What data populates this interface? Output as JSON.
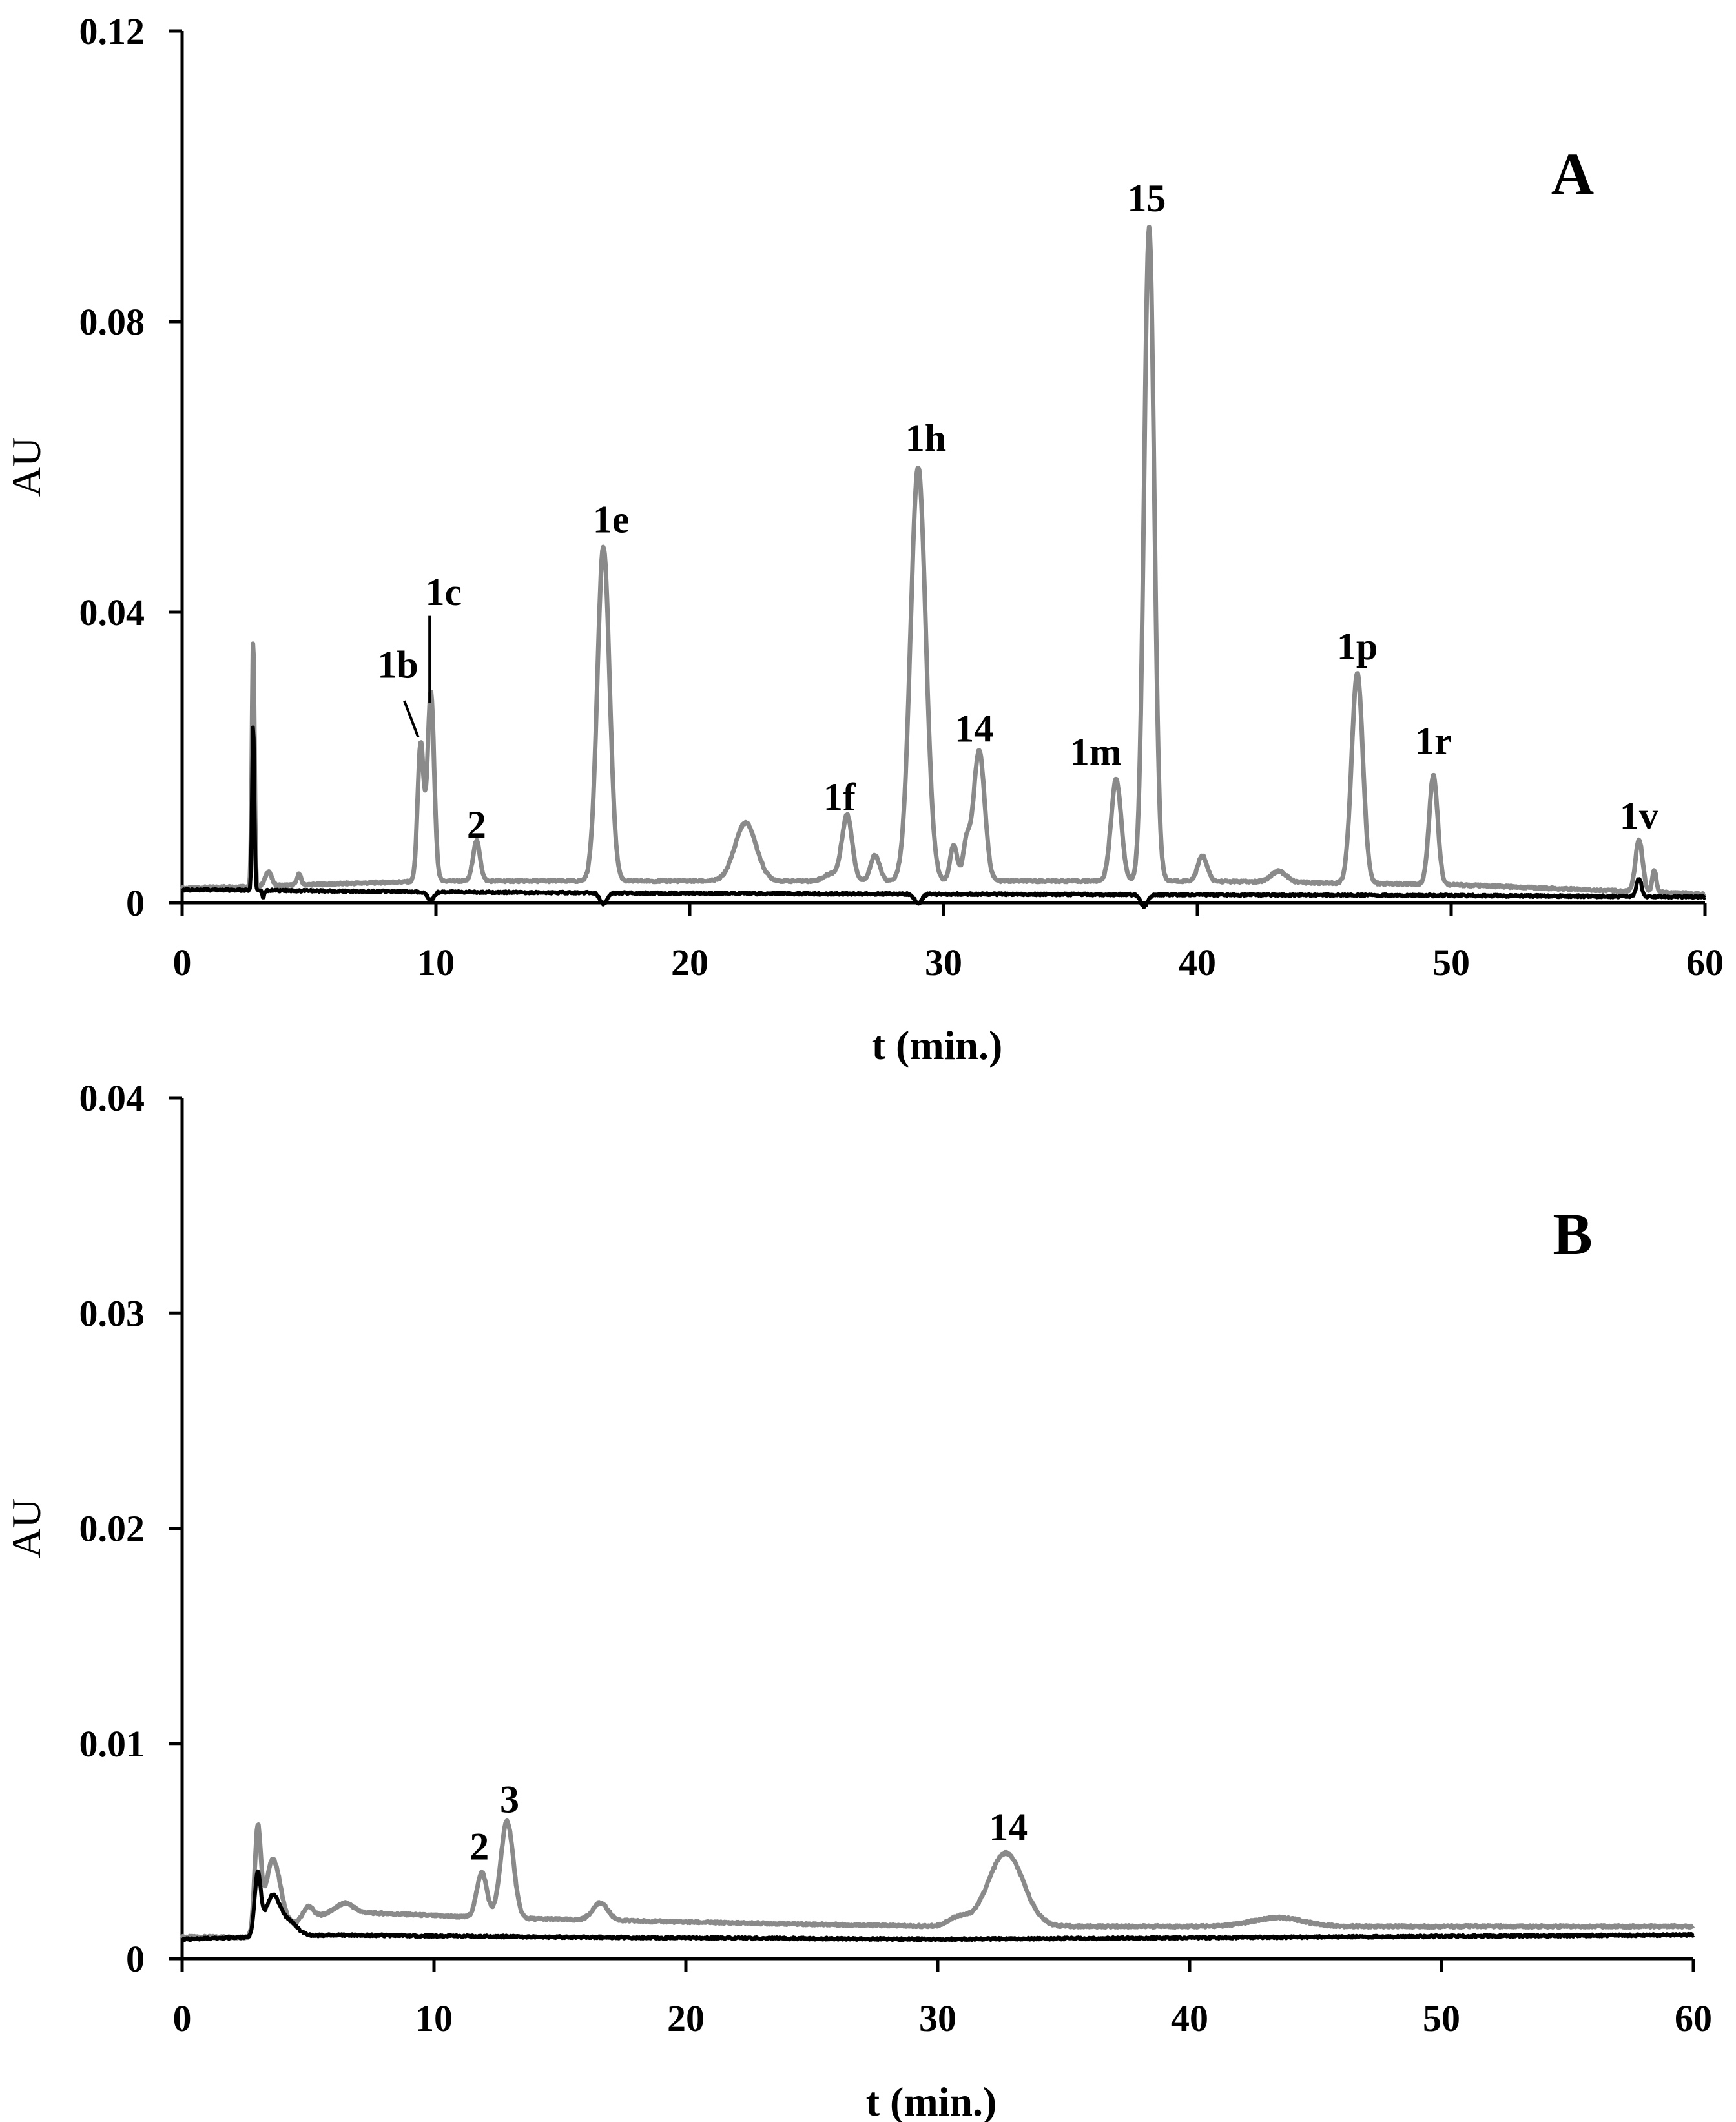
{
  "chart_data": [
    {
      "type": "line",
      "panel_label": "A",
      "xlabel": "t (min.)",
      "ylabel": "AU",
      "xlim": [
        0,
        60
      ],
      "ylim": [
        0,
        0.12
      ],
      "x_ticks": [
        0,
        10,
        20,
        30,
        40,
        50,
        60
      ],
      "y_ticks": [
        0,
        0.04,
        0.08,
        0.12
      ],
      "x_tick_labels": [
        "0",
        "10",
        "20",
        "30",
        "40",
        "50",
        "60"
      ],
      "y_tick_labels": [
        "0",
        "0.04",
        "0.08",
        "0.12"
      ],
      "grid": false,
      "colors": {
        "grey_trace": "#8a8a8a",
        "black_trace": "#000000"
      },
      "series": [
        {
          "color": "#8a8a8a",
          "baseline": [
            [
              0,
              0.002
            ],
            [
              10,
              0.003
            ],
            [
              20,
              0.003
            ],
            [
              30,
              0.003
            ],
            [
              40,
              0.003
            ],
            [
              50,
              0.0025
            ],
            [
              60,
              0.0012
            ]
          ],
          "peaks": [
            [
              2.8,
              0.034,
              0.05
            ],
            [
              3.4,
              0.002,
              0.12
            ],
            [
              4.6,
              0.0015,
              0.08
            ],
            [
              9.4,
              0.019,
              0.12
            ],
            [
              9.8,
              0.026,
              0.13
            ],
            [
              11.6,
              0.0055,
              0.14
            ],
            [
              16.6,
              0.046,
              0.24
            ],
            [
              22.2,
              0.008,
              0.42
            ],
            [
              25.6,
              0.001,
              0.3
            ],
            [
              26.2,
              0.009,
              0.2
            ],
            [
              27.3,
              0.0035,
              0.18
            ],
            [
              29.0,
              0.057,
              0.3
            ],
            [
              30.4,
              0.005,
              0.14
            ],
            [
              30.9,
              0.005,
              0.14
            ],
            [
              31.4,
              0.018,
              0.22
            ],
            [
              36.8,
              0.014,
              0.2
            ],
            [
              38.1,
              0.09,
              0.2
            ],
            [
              40.2,
              0.0035,
              0.18
            ],
            [
              43.2,
              0.0015,
              0.3
            ],
            [
              46.3,
              0.029,
              0.22
            ],
            [
              49.3,
              0.015,
              0.17
            ],
            [
              57.4,
              0.0072,
              0.14
            ],
            [
              58.0,
              0.003,
              0.08
            ]
          ],
          "points": [
            [
              0,
              0.002
            ],
            [
              2.8,
              0.036
            ],
            [
              9.4,
              0.022
            ],
            [
              9.8,
              0.029
            ],
            [
              11.6,
              0.0085
            ],
            [
              16.6,
              0.049
            ],
            [
              22.2,
              0.011
            ],
            [
              26.2,
              0.012
            ],
            [
              29.0,
              0.06
            ],
            [
              31.4,
              0.021
            ],
            [
              36.8,
              0.017
            ],
            [
              38.1,
              0.093
            ],
            [
              46.3,
              0.032
            ],
            [
              49.3,
              0.018
            ],
            [
              57.4,
              0.0085
            ],
            [
              60,
              0.0012
            ]
          ]
        },
        {
          "color": "#000000",
          "baseline": [
            [
              0,
              0.0018
            ],
            [
              10,
              0.0015
            ],
            [
              20,
              0.0013
            ],
            [
              30,
              0.0012
            ],
            [
              40,
              0.0011
            ],
            [
              50,
              0.001
            ],
            [
              60,
              0.0008
            ]
          ],
          "peaks": [
            [
              2.8,
              0.023,
              0.045
            ],
            [
              3.2,
              -0.001,
              0.04
            ],
            [
              9.8,
              -0.0012,
              0.12
            ],
            [
              16.6,
              -0.0015,
              0.14
            ],
            [
              29.0,
              -0.0013,
              0.14
            ],
            [
              37.9,
              -0.0016,
              0.14
            ],
            [
              57.4,
              0.0025,
              0.1
            ]
          ],
          "points": [
            [
              0,
              0.0018
            ],
            [
              2.8,
              0.025
            ],
            [
              57.4,
              0.0035
            ],
            [
              60,
              0.0008
            ]
          ]
        }
      ],
      "annotations": [
        {
          "text": "1b",
          "x": 8.5,
          "y": 0.031
        },
        {
          "text": "1c",
          "x": 10.3,
          "y": 0.041
        },
        {
          "text": "2",
          "x": 11.6,
          "y": 0.009
        },
        {
          "text": "1e",
          "x": 16.9,
          "y": 0.051
        },
        {
          "text": "1f",
          "x": 25.9,
          "y": 0.0128
        },
        {
          "text": "1h",
          "x": 29.3,
          "y": 0.0622
        },
        {
          "text": "14",
          "x": 31.2,
          "y": 0.0222
        },
        {
          "text": "1m",
          "x": 36.0,
          "y": 0.019
        },
        {
          "text": "15",
          "x": 38.0,
          "y": 0.0952
        },
        {
          "text": "1p",
          "x": 46.3,
          "y": 0.0335
        },
        {
          "text": "1r",
          "x": 49.3,
          "y": 0.0205
        },
        {
          "text": "1v",
          "x": 57.4,
          "y": 0.0102
        }
      ]
    },
    {
      "type": "line",
      "panel_label": "B",
      "xlabel": "t (min.)",
      "ylabel": "AU",
      "xlim": [
        0,
        60
      ],
      "ylim": [
        0,
        0.04
      ],
      "x_ticks": [
        0,
        10,
        20,
        30,
        40,
        50,
        60
      ],
      "y_ticks": [
        0,
        0.01,
        0.02,
        0.03,
        0.04
      ],
      "x_tick_labels": [
        "0",
        "10",
        "20",
        "30",
        "40",
        "50",
        "60"
      ],
      "y_tick_labels": [
        "0",
        "0.01",
        "0.02",
        "0.03",
        "0.04"
      ],
      "grid": false,
      "colors": {
        "grey_trace": "#8a8a8a",
        "black_trace": "#000000"
      },
      "series": [
        {
          "color": "#8a8a8a",
          "baseline": [
            [
              0,
              0.001
            ],
            [
              2.8,
              0.001
            ],
            [
              6,
              0.0022
            ],
            [
              12,
              0.0019
            ],
            [
              20,
              0.0017
            ],
            [
              30,
              0.0015
            ],
            [
              40,
              0.0015
            ],
            [
              50,
              0.0015
            ],
            [
              60,
              0.0015
            ]
          ],
          "peaks": [
            [
              3.0,
              0.0047,
              0.12
            ],
            [
              3.6,
              0.0033,
              0.3
            ],
            [
              5.0,
              0.0006,
              0.2
            ],
            [
              6.5,
              0.0004,
              0.3
            ],
            [
              11.9,
              0.0021,
              0.2
            ],
            [
              12.9,
              0.0045,
              0.25
            ],
            [
              16.6,
              0.0008,
              0.3
            ],
            [
              30.8,
              0.0004,
              0.4
            ],
            [
              32.7,
              0.0034,
              0.7
            ],
            [
              43.5,
              0.0004,
              1.0
            ]
          ],
          "points": [
            [
              0,
              0.001
            ],
            [
              3.0,
              0.0065
            ],
            [
              11.9,
              0.004
            ],
            [
              12.9,
              0.0062
            ],
            [
              32.7,
              0.005
            ],
            [
              60,
              0.0015
            ]
          ]
        },
        {
          "color": "#000000",
          "baseline": [
            [
              0,
              0.0009
            ],
            [
              3,
              0.001
            ],
            [
              6,
              0.0011
            ],
            [
              15,
              0.001
            ],
            [
              30,
              0.0009
            ],
            [
              45,
              0.001
            ],
            [
              60,
              0.0011
            ]
          ],
          "peaks": [
            [
              3.0,
              0.0028,
              0.12
            ],
            [
              3.6,
              0.0019,
              0.3
            ],
            [
              4.3,
              0.0006,
              0.3
            ]
          ],
          "points": [
            [
              0,
              0.0009
            ],
            [
              3.0,
              0.004
            ],
            [
              60,
              0.0011
            ]
          ]
        }
      ],
      "annotations": [
        {
          "text": "2",
          "x": 11.8,
          "y": 0.0046
        },
        {
          "text": "3",
          "x": 13.0,
          "y": 0.0068
        },
        {
          "text": "14",
          "x": 32.8,
          "y": 0.0055
        }
      ]
    }
  ]
}
